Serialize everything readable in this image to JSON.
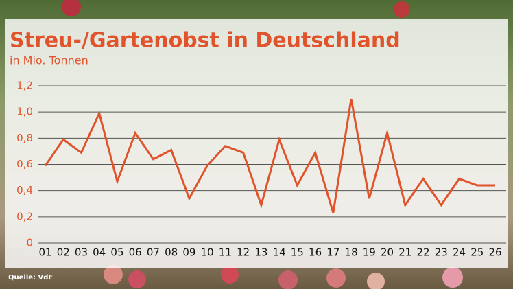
{
  "chart_data": {
    "type": "line",
    "title": "Streu-/Gartenobst in Deutschland",
    "subtitle": "in Mio. Tonnen",
    "source": "Quelle: VdF",
    "categories": [
      "01",
      "02",
      "03",
      "04",
      "05",
      "06",
      "07",
      "08",
      "09",
      "10",
      "11",
      "12",
      "13",
      "14",
      "15",
      "16",
      "17",
      "18",
      "19",
      "20",
      "21",
      "22",
      "23",
      "24",
      "25",
      "26"
    ],
    "series": [
      {
        "color": "#e0532b",
        "values": [
          0.59,
          0.79,
          0.69,
          0.99,
          0.47,
          0.84,
          0.64,
          0.71,
          0.34,
          0.59,
          0.74,
          0.69,
          0.29,
          0.79,
          0.44,
          0.69,
          0.23,
          1.1,
          0.34,
          0.84,
          0.29,
          0.49,
          0.29,
          0.49,
          0.44,
          0.44
        ]
      }
    ],
    "ylim": [
      0,
      1.2
    ],
    "yticks": [
      0,
      {
        "value": 0.2,
        "label": "0,2"
      },
      {
        "value": 0.4,
        "label": "0,4"
      },
      {
        "value": 0.6,
        "label": "0,6"
      },
      {
        "value": 0.8,
        "label": "0,8"
      },
      {
        "value": 1.0,
        "label": "1,0"
      },
      {
        "value": 1.2,
        "label": "1,2"
      }
    ],
    "grid": true
  }
}
